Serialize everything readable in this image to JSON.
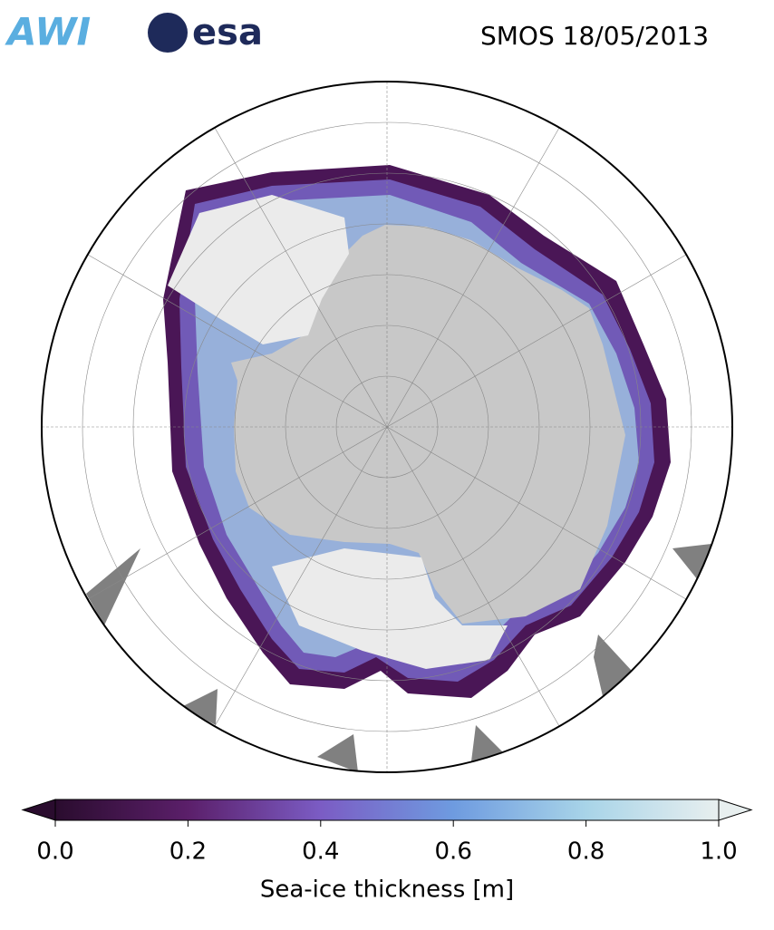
{
  "header": {
    "logos": [
      "AWI",
      "esa"
    ],
    "title": "SMOS 18/05/2013"
  },
  "colorbar": {
    "label": "Sea-ice thickness [m]",
    "range": [
      0,
      1
    ],
    "ticks": [
      {
        "value": 0,
        "label": "0.0"
      },
      {
        "value": 0.2,
        "label": "0.2"
      },
      {
        "value": 0.4,
        "label": "0.4"
      },
      {
        "value": 0.6,
        "label": "0.6"
      },
      {
        "value": 0.8,
        "label": "0.8"
      },
      {
        "value": 1,
        "label": "1.0"
      }
    ],
    "colors": [
      "#2a0c2e",
      "#5b1f6a",
      "#7b5cc4",
      "#6e9be0",
      "#a8d4e8",
      "#e8efef"
    ]
  }
}
